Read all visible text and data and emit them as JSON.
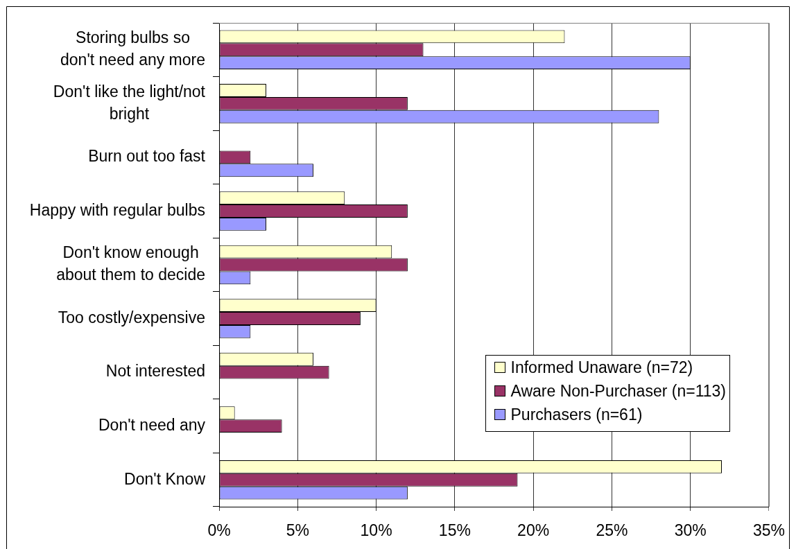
{
  "chart_data": {
    "type": "bar",
    "orientation": "horizontal",
    "categories": [
      "Storing bulbs so\ndon't need any more",
      "Don't like the light/not\nbright",
      "Burn out too fast",
      "Happy with regular bulbs",
      "Don't know enough\nabout them to decide",
      "Too costly/expensive",
      "Not interested",
      "Don't need any",
      "Don't Know"
    ],
    "series": [
      {
        "name": "Informed Unaware (n=72)",
        "color": "#ffffcc",
        "values": [
          22,
          3,
          null,
          8,
          11,
          10,
          6,
          1,
          32
        ]
      },
      {
        "name": "Aware Non-Purchaser (n=113)",
        "color": "#993366",
        "values": [
          13,
          12,
          2,
          12,
          12,
          9,
          7,
          4,
          19
        ]
      },
      {
        "name": "Purchasers (n=61)",
        "color": "#9999ff",
        "values": [
          30,
          28,
          6,
          3,
          2,
          2,
          null,
          null,
          12
        ]
      }
    ],
    "xlim": [
      0,
      35
    ],
    "xticks": [
      {
        "value": 0,
        "label": "0%"
      },
      {
        "value": 5,
        "label": "5%"
      },
      {
        "value": 10,
        "label": "10%"
      },
      {
        "value": 15,
        "label": "15%"
      },
      {
        "value": 20,
        "label": "20%"
      },
      {
        "value": 25,
        "label": "25%"
      },
      {
        "value": 30,
        "label": "30%"
      },
      {
        "value": 35,
        "label": "35%"
      }
    ],
    "grid": "x",
    "legend": "bottom right"
  }
}
